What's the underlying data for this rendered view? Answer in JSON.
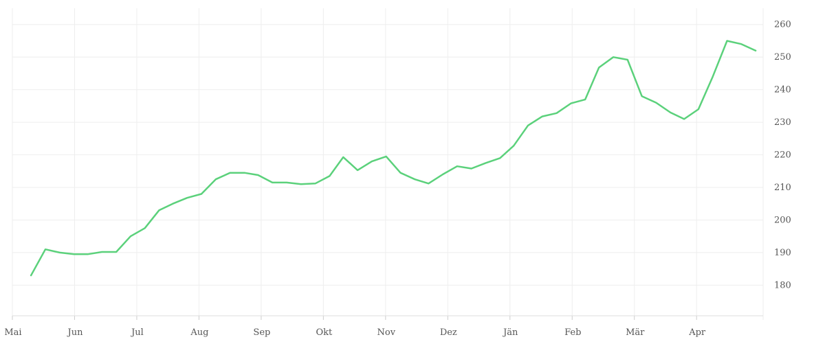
{
  "chart_data": {
    "type": "line",
    "title": "",
    "xlabel": "",
    "ylabel": "",
    "x_ticks": [
      "Mai",
      "Jun",
      "Jul",
      "Aug",
      "Sep",
      "Okt",
      "Nov",
      "Dez",
      "Jän",
      "Feb",
      "Mär",
      "Apr"
    ],
    "y_ticks": [
      180,
      190,
      200,
      210,
      220,
      230,
      240,
      250,
      260
    ],
    "ylim": [
      170.6,
      265
    ],
    "xlim": [
      0,
      12.07
    ],
    "y_axis_position": "right",
    "grid": true,
    "line_color": "#5bd17b",
    "grid_color": "#eeeeee",
    "series": [
      {
        "x": [
          0.3,
          0.53,
          0.76,
          0.99,
          1.21,
          1.44,
          1.67,
          1.9,
          2.13,
          2.36,
          2.58,
          2.81,
          3.04,
          3.27,
          3.5,
          3.73,
          3.95,
          4.18,
          4.41,
          4.64,
          4.87,
          5.1,
          5.32,
          5.55,
          5.78,
          6.01,
          6.24,
          6.47,
          6.69,
          6.92,
          7.15,
          7.38,
          7.61,
          7.84,
          8.06,
          8.29,
          8.52,
          8.75,
          8.98,
          9.21,
          9.43,
          9.66,
          9.89,
          10.12,
          10.35,
          10.58,
          10.8,
          11.03,
          11.26,
          11.49,
          11.72,
          11.95
        ],
        "values": [
          183,
          191,
          190,
          189.5,
          189.5,
          190.2,
          190.2,
          195,
          197.5,
          203,
          205,
          206.8,
          208,
          212.5,
          214.5,
          214.5,
          213.8,
          211.5,
          211.5,
          211,
          211.2,
          213.5,
          219.3,
          215.3,
          218,
          219.5,
          214.5,
          212.5,
          211.2,
          214,
          216.5,
          215.8,
          217.5,
          219,
          222.8,
          229,
          231.8,
          232.8,
          235.8,
          237,
          246.8,
          250,
          249.2,
          238,
          236,
          233,
          231,
          234,
          244,
          255,
          254,
          252
        ]
      }
    ]
  }
}
